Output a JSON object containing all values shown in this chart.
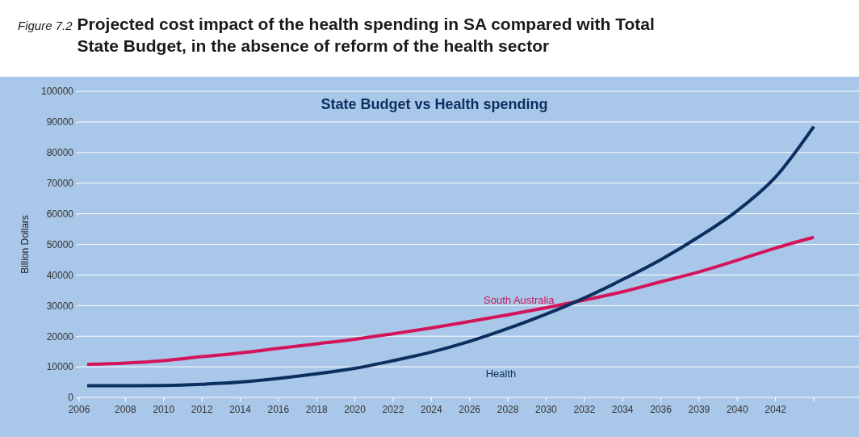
{
  "chart_data": {
    "type": "line",
    "title": "Projected cost impact of the health spending in SA compared with Total State Budget, in the absence of reform of the health sector",
    "subtitle": "State Budget vs Health spending",
    "ylabel": "Billion Dollars",
    "annotations": [
      "Figure 7.2"
    ],
    "categories": [
      "2006",
      "2008",
      "2010",
      "2012",
      "2014",
      "2016",
      "2018",
      "2020",
      "2022",
      "2024",
      "2026",
      "2028",
      "2030",
      "2032",
      "2034",
      "2036",
      "2039",
      "2040",
      "2042",
      null
    ],
    "series": [
      {
        "name": "South Australia",
        "color": "#d4145a",
        "values": [
          10800,
          11200,
          12000,
          13300,
          14500,
          16000,
          17500,
          19000,
          20800,
          22700,
          24800,
          27000,
          29300,
          31800,
          34500,
          37800,
          41000,
          44800,
          48800,
          52300
        ]
      },
      {
        "name": "Health",
        "color": "#0b2f5e",
        "values": [
          3800,
          3800,
          3900,
          4300,
          5000,
          6200,
          7700,
          9500,
          12000,
          14800,
          18300,
          22500,
          27200,
          32500,
          38500,
          45000,
          52500,
          61000,
          72000,
          88500
        ]
      }
    ],
    "ylim": [
      0,
      100000
    ],
    "yticks": [
      0,
      10000,
      20000,
      30000,
      40000,
      50000,
      60000,
      70000,
      80000,
      90000,
      100000
    ],
    "grid": "y",
    "marker": "none",
    "line_style": "solid"
  }
}
